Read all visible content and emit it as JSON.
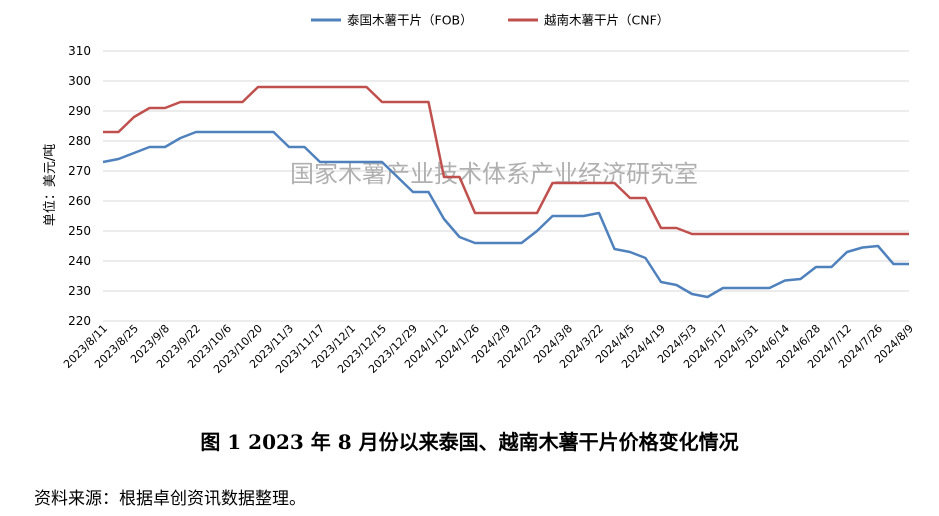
{
  "chart_data": {
    "type": "line",
    "ylabel": "单位：美元/吨",
    "ylim": [
      220,
      310
    ],
    "yticks": [
      220,
      230,
      240,
      250,
      260,
      270,
      280,
      290,
      300,
      310
    ],
    "grid": "horizontal",
    "legend_position": "top",
    "watermark": "国家木薯产业技术体系产业经济研究室",
    "x_tick_labels": [
      "2023/8/11",
      "2023/8/25",
      "2023/9/8",
      "2023/9/22",
      "2023/10/6",
      "2023/10/20",
      "2023/11/3",
      "2023/11/17",
      "2023/12/1",
      "2023/12/15",
      "2023/12/29",
      "2024/1/12",
      "2024/1/26",
      "2024/2/9",
      "2024/2/23",
      "2024/3/8",
      "2024/3/22",
      "2024/4/5",
      "2024/4/19",
      "2024/5/3",
      "2024/5/17",
      "2024/5/31",
      "2024/6/14",
      "2024/6/28",
      "2024/7/12",
      "2024/7/26",
      "2024/8/9"
    ],
    "x": [
      "2023/8/11",
      "2023/8/18",
      "2023/8/25",
      "2023/9/1",
      "2023/9/8",
      "2023/9/15",
      "2023/9/22",
      "2023/9/29",
      "2023/10/6",
      "2023/10/13",
      "2023/10/20",
      "2023/10/27",
      "2023/11/3",
      "2023/11/10",
      "2023/11/17",
      "2023/11/24",
      "2023/12/1",
      "2023/12/8",
      "2023/12/15",
      "2023/12/22",
      "2023/12/29",
      "2024/1/5",
      "2024/1/12",
      "2024/1/19",
      "2024/1/26",
      "2024/2/2",
      "2024/2/9",
      "2024/2/16",
      "2024/2/23",
      "2024/3/1",
      "2024/3/8",
      "2024/3/15",
      "2024/3/22",
      "2024/3/29",
      "2024/4/5",
      "2024/4/12",
      "2024/4/19",
      "2024/4/26",
      "2024/5/3",
      "2024/5/10",
      "2024/5/17",
      "2024/5/24",
      "2024/5/31",
      "2024/6/7",
      "2024/6/14",
      "2024/6/21",
      "2024/6/28",
      "2024/7/5",
      "2024/7/12",
      "2024/7/19",
      "2024/7/26",
      "2024/8/2",
      "2024/8/9"
    ],
    "series": [
      {
        "name": "泰国木薯干片（FOB）",
        "color": "#4f81bd",
        "values": [
          273,
          274,
          276,
          278,
          278,
          281,
          283,
          283,
          283,
          283,
          283,
          283,
          278,
          278,
          273,
          273,
          273,
          273,
          273,
          268,
          263,
          263,
          254,
          248,
          246,
          246,
          246,
          246,
          250,
          255,
          255,
          255,
          256,
          244,
          243,
          241,
          233,
          232,
          229,
          228,
          231,
          231,
          231,
          231,
          233.5,
          234,
          238,
          238,
          243,
          244.5,
          245,
          239,
          239
        ]
      },
      {
        "name": "越南木薯干片（CNF）",
        "color": "#c0504d",
        "values": [
          283,
          283,
          288,
          291,
          291,
          293,
          293,
          293,
          293,
          293,
          298,
          298,
          298,
          298,
          298,
          298,
          298,
          298,
          293,
          293,
          293,
          293,
          268,
          268,
          256,
          256,
          256,
          256,
          256,
          266,
          266,
          266,
          266,
          266,
          261,
          261,
          251,
          251,
          249,
          249,
          249,
          249,
          249,
          249,
          249,
          249,
          249,
          249,
          249,
          249,
          249,
          249,
          249
        ]
      }
    ]
  },
  "figure": {
    "caption": "图 1    2023 年 8 月份以来泰国、越南木薯干片价格变化情况",
    "source_note": "资料来源：根据卓创资讯数据整理。"
  }
}
